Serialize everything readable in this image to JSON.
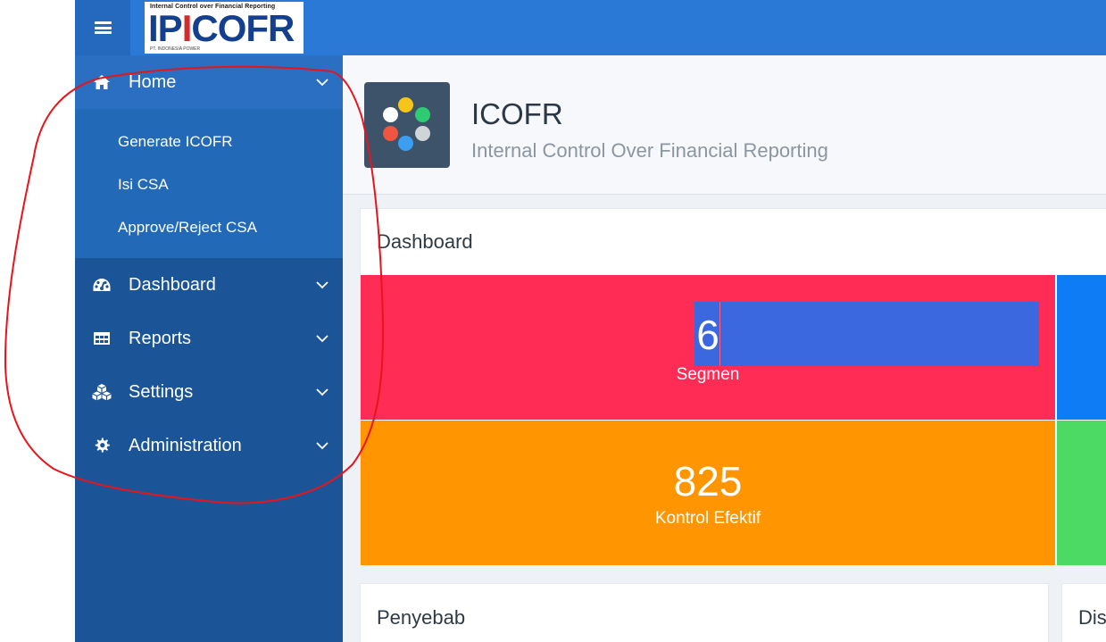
{
  "header": {
    "logo_tagline": "Internal Control over Financial Reporting",
    "logo_prefix": "IP",
    "logo_accent": "I",
    "logo_suffix": "COFR",
    "logo_company": "PT. INDONESIA POWER"
  },
  "sidebar": {
    "items": [
      {
        "label": "Home",
        "icon": "home-icon",
        "expanded": true,
        "children": [
          {
            "label": "Generate ICOFR"
          },
          {
            "label": "Isi CSA"
          },
          {
            "label": "Approve/Reject CSA"
          }
        ]
      },
      {
        "label": "Dashboard",
        "icon": "dashboard-icon"
      },
      {
        "label": "Reports",
        "icon": "table-icon"
      },
      {
        "label": "Settings",
        "icon": "cubes-icon"
      },
      {
        "label": "Administration",
        "icon": "gear-icon"
      }
    ]
  },
  "page": {
    "title": "ICOFR",
    "subtitle": "Internal Control Over Financial Reporting"
  },
  "dashboard": {
    "title": "Dashboard",
    "tiles": [
      {
        "value": "6",
        "label": "Segmen",
        "color": "#ff2c55"
      },
      {
        "value": "825",
        "label": "Kontrol Efektif",
        "color": "#ff9500"
      }
    ]
  },
  "cards": {
    "penyebab_title": "Penyebab",
    "dis_title": "Dis"
  },
  "colors": {
    "topbar": "#2a79d6",
    "sidebar": "#1c5597",
    "accent_red": "#ff2c55",
    "accent_blue": "#0e7cf5",
    "accent_orange": "#ff9500",
    "accent_green": "#4cd964",
    "annotation": "#e8141b"
  }
}
